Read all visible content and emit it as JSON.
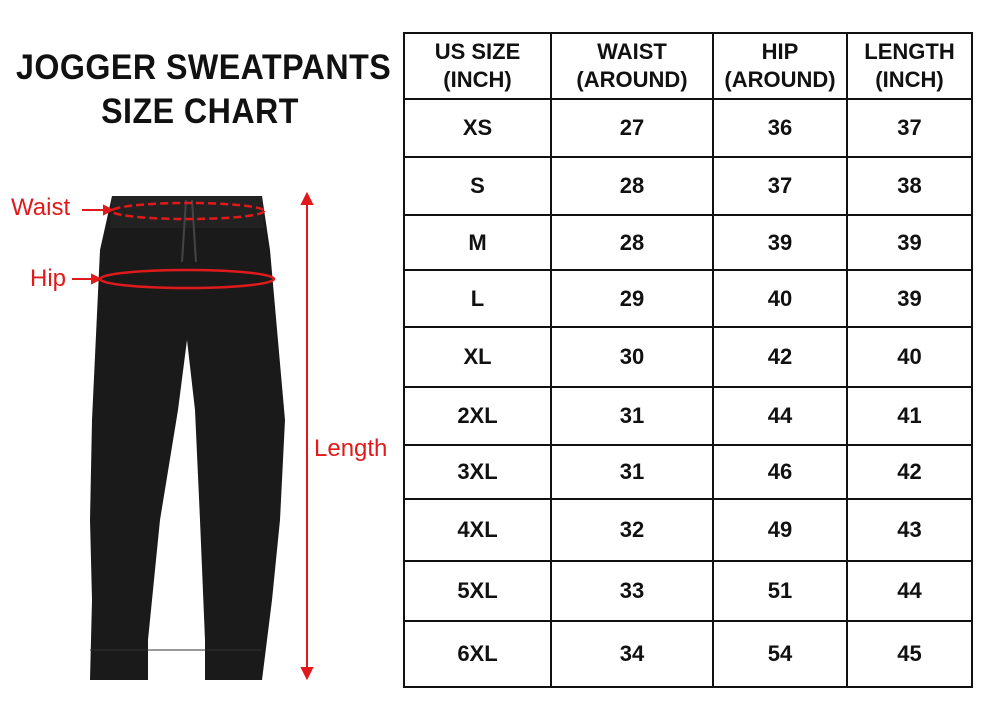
{
  "title": {
    "line1": "JOGGER SWEATPANTS",
    "line2": "SIZE CHART"
  },
  "labels": {
    "waist": "Waist",
    "hip": "Hip",
    "length": "Length"
  },
  "colors": {
    "accent": "#e01a1a",
    "product": "#1a1a1a"
  },
  "table": {
    "headers": [
      {
        "l1": "US SIZE",
        "l2": "(INCH)"
      },
      {
        "l1": "WAIST",
        "l2": "(AROUND)"
      },
      {
        "l1": "HIP",
        "l2": "(AROUND)"
      },
      {
        "l1": "LENGTH",
        "l2": "(INCH)"
      }
    ],
    "rows": [
      [
        "XS",
        "27",
        "36",
        "37"
      ],
      [
        "S",
        "28",
        "37",
        "38"
      ],
      [
        "M",
        "28",
        "39",
        "39"
      ],
      [
        "L",
        "29",
        "40",
        "39"
      ],
      [
        "XL",
        "30",
        "42",
        "40"
      ],
      [
        "2XL",
        "31",
        "44",
        "41"
      ],
      [
        "3XL",
        "31",
        "46",
        "42"
      ],
      [
        "4XL",
        "32",
        "49",
        "43"
      ],
      [
        "5XL",
        "33",
        "51",
        "44"
      ],
      [
        "6XL",
        "34",
        "54",
        "45"
      ]
    ]
  }
}
